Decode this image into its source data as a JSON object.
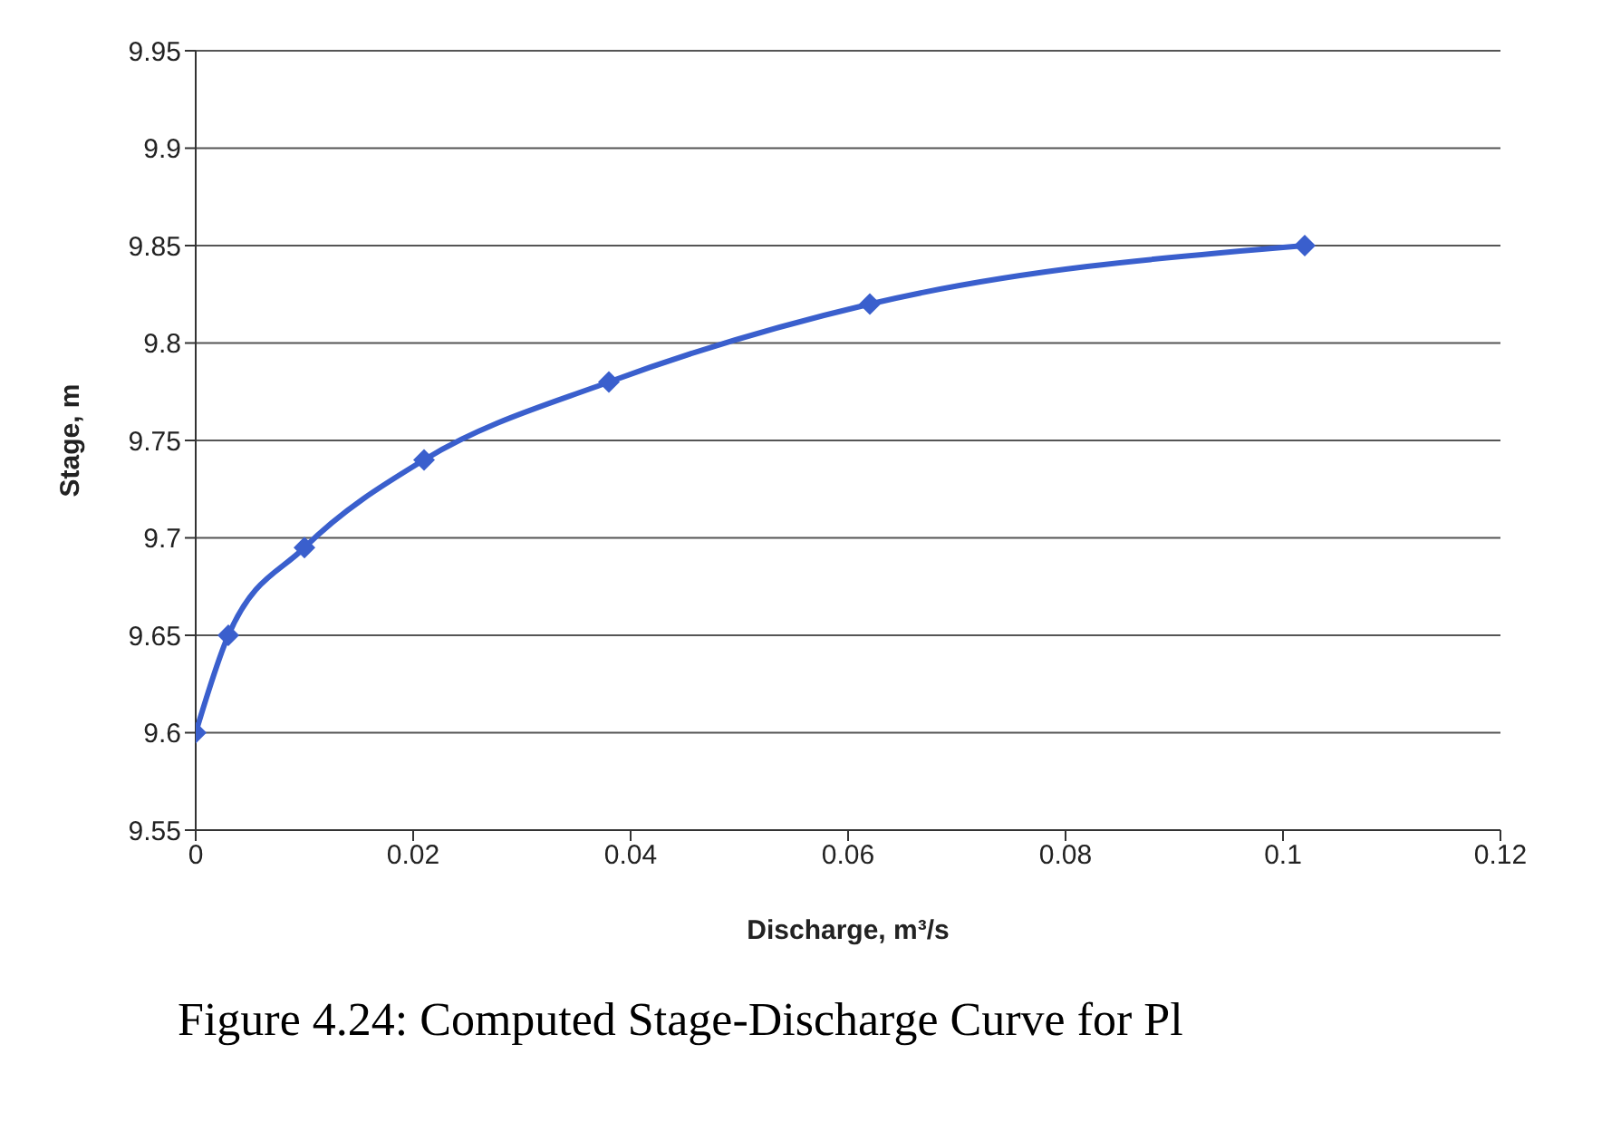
{
  "chart_data": {
    "type": "line",
    "xlabel": "Discharge, m³/s",
    "ylabel": "Stage, m",
    "x": [
      0,
      0.003,
      0.01,
      0.021,
      0.038,
      0.062,
      0.102
    ],
    "series": [
      {
        "color": "#3a5fcd",
        "values": [
          9.6,
          9.65,
          9.695,
          9.74,
          9.78,
          9.82,
          9.85
        ]
      }
    ],
    "xlim": [
      0,
      0.12
    ],
    "xticks": [
      0,
      0.02,
      0.04,
      0.06,
      0.08,
      0.1,
      0.12
    ],
    "ylim": [
      9.55,
      9.95
    ],
    "yticks": [
      9.55,
      9.6,
      9.65,
      9.7,
      9.75,
      9.8,
      9.85,
      9.9,
      9.95
    ],
    "grid": "y",
    "marker": "diamond",
    "line_style": "solid",
    "legend": false,
    "annotations": [
      "Figure 4.24: Computed Stage-Discharge Curve for Pl"
    ]
  }
}
